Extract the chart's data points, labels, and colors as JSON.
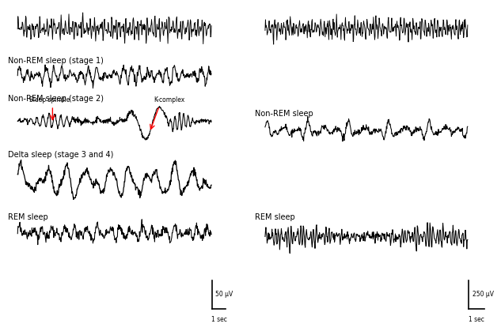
{
  "background_color": "#ffffff",
  "left_labels": [
    "Non-REM sleep (stage 1)",
    "Non-REM sleep (stage 2)",
    "Delta sleep (stage 3 and 4)",
    "REM sleep"
  ],
  "right_labels": [
    "Non-REM sleep",
    "REM sleep"
  ],
  "left_scale_bar": {
    "amplitude": "50 μV",
    "time": "1 sec"
  },
  "right_scale_bar": {
    "amplitude": "250 μV",
    "time": "1 sec"
  },
  "spindle_label": "Sleep spindle",
  "kcomplex_label": "K-complex"
}
